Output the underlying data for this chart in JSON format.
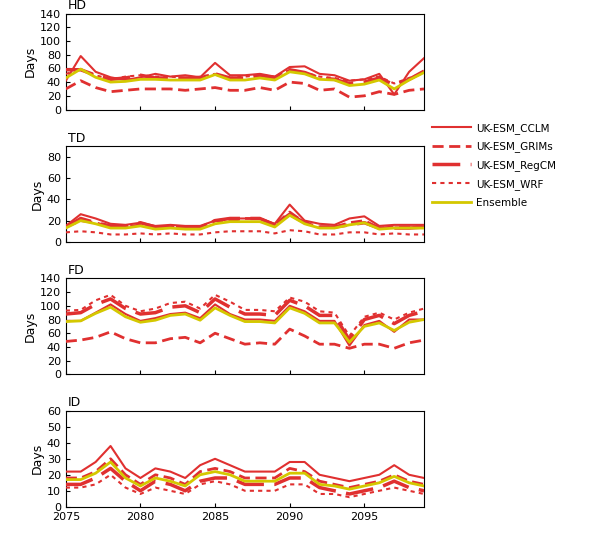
{
  "years": [
    2075,
    2076,
    2077,
    2078,
    2079,
    2080,
    2081,
    2082,
    2083,
    2084,
    2085,
    2086,
    2087,
    2088,
    2089,
    2090,
    2091,
    2092,
    2093,
    2094,
    2095,
    2096,
    2097,
    2098,
    2099
  ],
  "HD": {
    "CCLM": [
      42,
      78,
      55,
      47,
      43,
      47,
      52,
      48,
      50,
      47,
      68,
      50,
      50,
      52,
      48,
      62,
      63,
      52,
      50,
      42,
      44,
      52,
      22,
      55,
      75
    ],
    "GRIMs": [
      30,
      42,
      32,
      26,
      28,
      30,
      30,
      30,
      28,
      30,
      32,
      28,
      28,
      32,
      28,
      40,
      38,
      28,
      30,
      18,
      20,
      26,
      22,
      28,
      30
    ],
    "RegCM": [
      58,
      58,
      50,
      44,
      46,
      50,
      46,
      46,
      46,
      46,
      52,
      46,
      46,
      50,
      46,
      58,
      54,
      46,
      44,
      38,
      40,
      46,
      36,
      44,
      56
    ],
    "WRF": [
      52,
      58,
      50,
      44,
      48,
      50,
      48,
      48,
      46,
      48,
      52,
      46,
      48,
      50,
      48,
      58,
      54,
      48,
      46,
      42,
      44,
      48,
      38,
      46,
      54
    ],
    "Ensemble": [
      46,
      59,
      47,
      40,
      41,
      44,
      44,
      43,
      43,
      43,
      51,
      43,
      43,
      46,
      43,
      55,
      52,
      44,
      43,
      35,
      37,
      43,
      30,
      43,
      54
    ]
  },
  "TD": {
    "CCLM": [
      15,
      26,
      22,
      17,
      16,
      18,
      15,
      16,
      15,
      15,
      20,
      22,
      22,
      22,
      17,
      35,
      20,
      17,
      16,
      22,
      24,
      15,
      16,
      16,
      16
    ],
    "GRIMs": [
      14,
      20,
      18,
      14,
      14,
      16,
      13,
      14,
      14,
      14,
      20,
      20,
      22,
      22,
      16,
      28,
      18,
      14,
      14,
      18,
      20,
      13,
      14,
      14,
      14
    ],
    "RegCM": [
      14,
      22,
      18,
      15,
      14,
      18,
      14,
      14,
      13,
      13,
      20,
      22,
      22,
      22,
      16,
      26,
      18,
      14,
      14,
      16,
      18,
      13,
      13,
      13,
      14
    ],
    "WRF": [
      9,
      10,
      9,
      7,
      7,
      8,
      7,
      8,
      7,
      7,
      9,
      10,
      10,
      10,
      8,
      11,
      10,
      7,
      7,
      9,
      9,
      7,
      8,
      7,
      7
    ],
    "Ensemble": [
      13,
      20,
      17,
      13,
      13,
      15,
      12,
      13,
      12,
      12,
      17,
      19,
      19,
      19,
      14,
      25,
      17,
      13,
      13,
      16,
      18,
      12,
      13,
      13,
      13
    ]
  },
  "FD": {
    "CCLM": [
      78,
      78,
      90,
      102,
      88,
      78,
      82,
      88,
      90,
      82,
      102,
      88,
      80,
      80,
      78,
      100,
      92,
      78,
      78,
      42,
      72,
      78,
      62,
      80,
      80
    ],
    "GRIMs": [
      48,
      50,
      54,
      62,
      52,
      46,
      46,
      52,
      54,
      46,
      60,
      52,
      44,
      46,
      44,
      66,
      56,
      44,
      44,
      38,
      44,
      44,
      38,
      46,
      50
    ],
    "RegCM": [
      88,
      90,
      102,
      110,
      96,
      88,
      90,
      98,
      100,
      90,
      110,
      98,
      88,
      88,
      86,
      108,
      100,
      86,
      86,
      50,
      80,
      86,
      74,
      86,
      92
    ],
    "WRF": [
      93,
      94,
      108,
      116,
      100,
      92,
      96,
      104,
      106,
      96,
      116,
      106,
      94,
      94,
      92,
      112,
      106,
      92,
      90,
      56,
      84,
      90,
      80,
      90,
      96
    ],
    "Ensemble": [
      77,
      78,
      89,
      98,
      84,
      76,
      79,
      86,
      88,
      79,
      97,
      86,
      77,
      77,
      75,
      97,
      89,
      75,
      75,
      47,
      70,
      75,
      64,
      76,
      80
    ]
  },
  "ID": {
    "CCLM": [
      22,
      22,
      28,
      38,
      24,
      18,
      24,
      22,
      18,
      26,
      30,
      26,
      22,
      22,
      22,
      28,
      28,
      20,
      18,
      16,
      18,
      20,
      26,
      20,
      18
    ],
    "GRIMs": [
      18,
      18,
      22,
      30,
      20,
      14,
      20,
      18,
      14,
      22,
      24,
      22,
      18,
      18,
      18,
      24,
      22,
      16,
      14,
      12,
      14,
      16,
      20,
      16,
      14
    ],
    "RegCM": [
      14,
      14,
      18,
      24,
      16,
      10,
      16,
      14,
      10,
      16,
      18,
      18,
      14,
      14,
      14,
      18,
      18,
      12,
      10,
      8,
      10,
      12,
      16,
      12,
      10
    ],
    "WRF": [
      12,
      12,
      14,
      20,
      12,
      8,
      12,
      10,
      8,
      14,
      16,
      14,
      10,
      10,
      10,
      14,
      14,
      8,
      8,
      6,
      8,
      10,
      12,
      10,
      8
    ],
    "Ensemble": [
      17,
      17,
      21,
      28,
      18,
      13,
      18,
      16,
      13,
      20,
      22,
      20,
      16,
      16,
      16,
      21,
      21,
      14,
      13,
      11,
      13,
      15,
      19,
      15,
      13
    ]
  },
  "colors": {
    "CCLM": "#e03030",
    "GRIMs": "#e03030",
    "RegCM": "#e03030",
    "WRF": "#e83080",
    "Ensemble": "#d4c800"
  },
  "HD_ylim": [
    0,
    140
  ],
  "TD_ylim": [
    0,
    90
  ],
  "FD_ylim": [
    0,
    140
  ],
  "ID_ylim": [
    0,
    60
  ],
  "HD_yticks": [
    0,
    20,
    40,
    60,
    80,
    100,
    120,
    140
  ],
  "TD_yticks": [
    0,
    20,
    40,
    60,
    80
  ],
  "FD_yticks": [
    0,
    20,
    40,
    60,
    80,
    100,
    120,
    140
  ],
  "ID_yticks": [
    0,
    10,
    20,
    30,
    40,
    50,
    60
  ],
  "xticks": [
    2075,
    2080,
    2085,
    2090,
    2095
  ],
  "legend_labels": [
    "UK-ESM_CCLM",
    "UK-ESM_GRIMs",
    "UK-ESM_RegCM",
    "UK-ESM_WRF",
    "Ensemble"
  ],
  "legend_keys": [
    "CCLM",
    "GRIMs",
    "RegCM",
    "WRF",
    "Ensemble"
  ]
}
